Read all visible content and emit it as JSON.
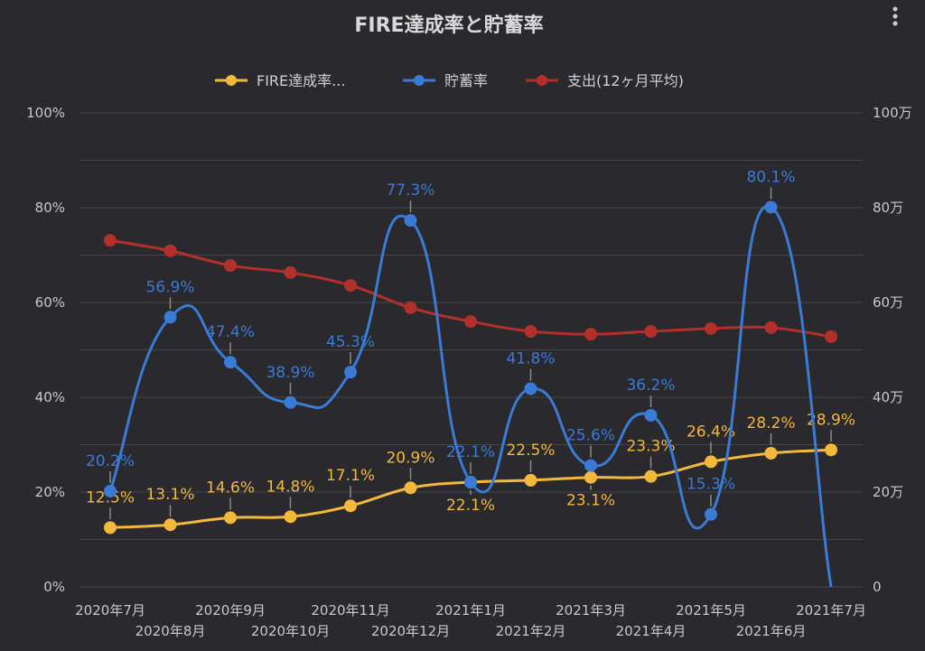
{
  "chart_data": {
    "type": "line",
    "title": "FIRE達成率と貯蓄率",
    "categories": [
      "2020年7月",
      "2020年8月",
      "2020年9月",
      "2020年10月",
      "2020年11月",
      "2020年12月",
      "2021年1月",
      "2021年2月",
      "2021年3月",
      "2021年4月",
      "2021年5月",
      "2021年6月",
      "2021年7月"
    ],
    "y_left": {
      "ticks": [
        "0%",
        "20%",
        "40%",
        "60%",
        "80%",
        "100%"
      ],
      "range": [
        0,
        100
      ]
    },
    "y_right": {
      "ticks": [
        "0",
        "20万",
        "40万",
        "60万",
        "80万",
        "100万"
      ],
      "range": [
        0,
        100
      ]
    },
    "grid": true,
    "legend_position": "top",
    "series": [
      {
        "name": "FIRE達成率...",
        "axis": "left",
        "color": "#f4b83a",
        "values": [
          12.5,
          13.1,
          14.6,
          14.8,
          17.1,
          20.9,
          22.1,
          22.5,
          23.1,
          23.3,
          26.4,
          28.2,
          28.9
        ],
        "labels": [
          "12.5%",
          "13.1%",
          "14.6%",
          "14.8%",
          "17.1%",
          "20.9%",
          "22.1%",
          "22.5%",
          "23.1%",
          "23.3%",
          "26.4%",
          "28.2%",
          "28.9%"
        ]
      },
      {
        "name": "貯蓄率",
        "axis": "left",
        "color": "#3a7bd5",
        "values": [
          20.2,
          56.9,
          47.4,
          38.9,
          45.3,
          77.3,
          22.1,
          41.8,
          25.6,
          36.2,
          15.3,
          80.1,
          0
        ],
        "labels": [
          "20.2%",
          "56.9%",
          "47.4%",
          "38.9%",
          "45.3%",
          "77.3%",
          "22.1%",
          "41.8%",
          "25.6%",
          "36.2%",
          "15.3%",
          "80.1%",
          ""
        ]
      },
      {
        "name": "支出(12ヶ月平均)",
        "axis": "right",
        "unit": "万",
        "color": "#b3302a",
        "values": [
          73.1,
          70.9,
          67.8,
          66.3,
          63.6,
          58.9,
          56.0,
          53.9,
          53.3,
          53.9,
          54.5,
          54.7,
          52.8
        ],
        "labels": []
      }
    ]
  },
  "menu_icon": "more-vert-icon"
}
